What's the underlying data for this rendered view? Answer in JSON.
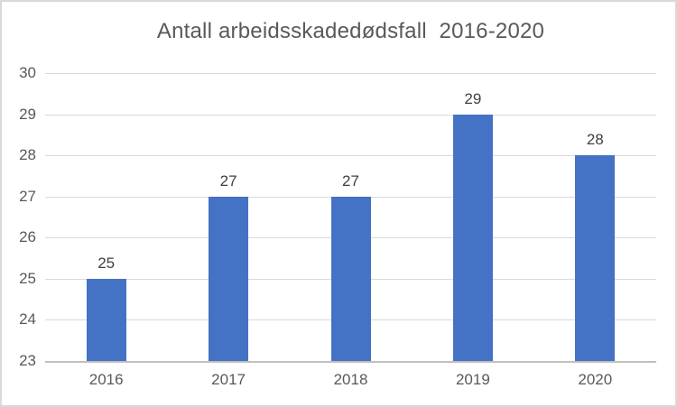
{
  "chart_data": {
    "type": "bar",
    "title": "Antall arbeidsskadedødsfall  2016-2020",
    "categories": [
      "2016",
      "2017",
      "2018",
      "2019",
      "2020"
    ],
    "values": [
      25,
      27,
      27,
      29,
      28
    ],
    "xlabel": "",
    "ylabel": "",
    "ylim": [
      23,
      30
    ],
    "yticks": [
      23,
      24,
      25,
      26,
      27,
      28,
      29,
      30
    ],
    "grid": true,
    "legend": "none",
    "data_labels": true,
    "colors": {
      "bar": "#4472C4",
      "gridline": "#D9D9D9",
      "axis_line": "#BFBFBF",
      "title_text": "#595959",
      "tick_text": "#595959",
      "data_label_text": "#404040",
      "frame_border": "#D9D9D9",
      "background": "#FFFFFF"
    }
  }
}
